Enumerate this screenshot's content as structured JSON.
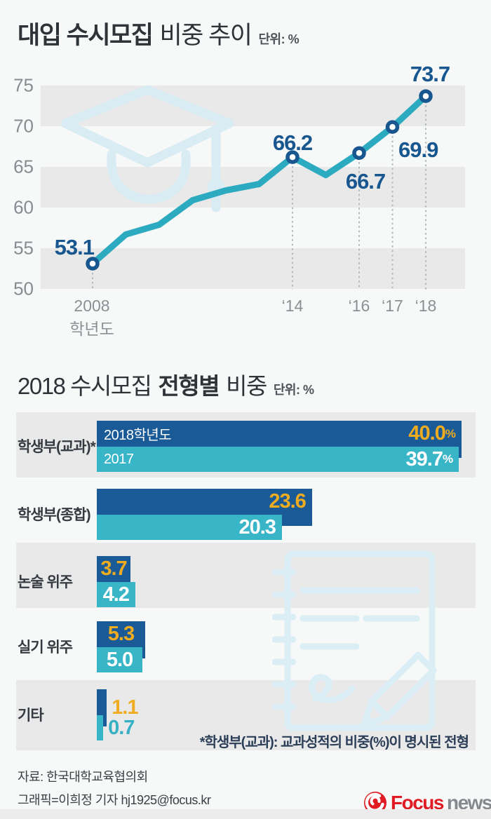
{
  "chart1": {
    "title_bold": "대입 수시모집",
    "title_rest": "비중 추이",
    "unit": "단위: %",
    "axis": {
      "first_year": "2008",
      "first_year_sub": "학년도",
      "year_ticks": [
        {
          "label": "‘14",
          "year": 2014
        },
        {
          "label": "‘16",
          "year": 2016
        },
        {
          "label": "‘17",
          "year": 2017
        },
        {
          "label": "‘18",
          "year": 2018
        }
      ]
    }
  },
  "chart2": {
    "title_pre": "2018 수시모집",
    "title_bold": "전형별",
    "title_post": "비중",
    "unit": "단위: %"
  },
  "chart_data": [
    {
      "type": "line",
      "title": "대입 수시모집 비중 추이",
      "unit": "%",
      "ylim": [
        50,
        75
      ],
      "y_ticks": [
        75,
        70,
        65,
        60,
        55,
        50
      ],
      "x": [
        2008,
        2009,
        2010,
        2011,
        2012,
        2013,
        2014,
        2015,
        2016,
        2017,
        2018
      ],
      "values": [
        53.1,
        56.7,
        57.9,
        60.9,
        62.1,
        62.9,
        66.2,
        64.0,
        66.7,
        69.9,
        73.7
      ],
      "labeled_points": [
        {
          "year": 2008,
          "value": 53.1
        },
        {
          "year": 2014,
          "value": 66.2
        },
        {
          "year": 2016,
          "value": 66.7
        },
        {
          "year": 2017,
          "value": 69.9
        },
        {
          "year": 2018,
          "value": 73.7
        }
      ],
      "note": "values for unlabeled years estimated from line shape",
      "grid": "horizontal striped bands",
      "line_color": "#2caac0",
      "marker_color": "#17568f"
    },
    {
      "type": "bar",
      "title": "2018 수시모집 전형별 비중",
      "unit": "%",
      "orientation": "horizontal",
      "categories": [
        "학생부(교과)*",
        "학생부(종합)",
        "논술 위주",
        "실기 위주",
        "기타"
      ],
      "series": [
        {
          "name": "2018학년도",
          "color": "#1a5b97",
          "values": [
            40.0,
            23.6,
            3.7,
            5.3,
            1.1
          ]
        },
        {
          "name": "2017",
          "color": "#39b5c8",
          "values": [
            39.7,
            20.3,
            4.2,
            5.0,
            0.7
          ]
        }
      ],
      "value_suffix_first_row": "%",
      "legend_position": "inside first row bars"
    }
  ],
  "footnote": "*학생부(교과): 교과성적의 비중(%)이 명시된 전형",
  "footer": {
    "source": "자료: 한국대학교육협의회",
    "credit": "그래픽=이희정 기자 hj1925@focus.kr"
  },
  "logo": {
    "focus": "Focus",
    "news": "news"
  },
  "colors": {
    "background": "#f7f8f8",
    "stripe": "#e9e9ea",
    "line_teal": "#2caac0",
    "bar_blue": "#1a5b97",
    "bar_teal": "#39b5c8",
    "value_yellow": "#efac20",
    "label_navy": "#17568f",
    "logo_red": "#e11b23",
    "watermark_blue": "#d9ecf3"
  }
}
